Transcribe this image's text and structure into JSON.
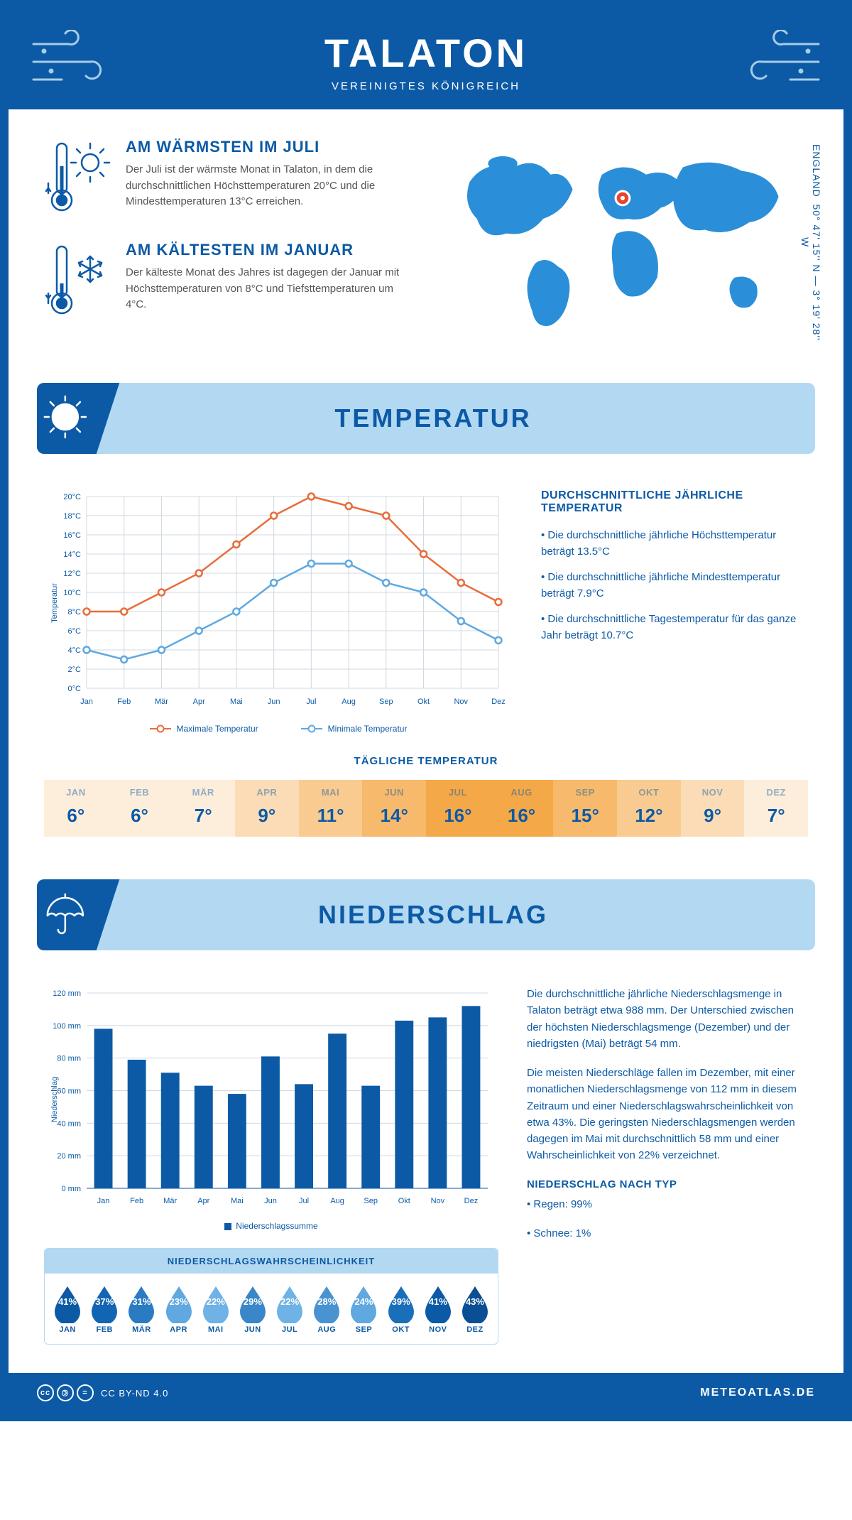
{
  "header": {
    "title": "TALATON",
    "subtitle": "VEREINIGTES KÖNIGREICH"
  },
  "coords": {
    "lat": "50° 47' 15'' N — 3° 19' 28'' W",
    "region": "ENGLAND"
  },
  "intro": {
    "warmest": {
      "title": "AM WÄRMSTEN IM JULI",
      "text": "Der Juli ist der wärmste Monat in Talaton, in dem die durchschnittlichen Höchsttemperaturen 20°C und die Mindesttemperaturen 13°C erreichen."
    },
    "coldest": {
      "title": "AM KÄLTESTEN IM JANUAR",
      "text": "Der kälteste Monat des Jahres ist dagegen der Januar mit Höchsttemperaturen von 8°C und Tiefsttemperaturen um 4°C."
    }
  },
  "temperature": {
    "banner": "TEMPERATUR",
    "chart": {
      "type": "line",
      "months": [
        "Jan",
        "Feb",
        "Mär",
        "Apr",
        "Mai",
        "Jun",
        "Jul",
        "Aug",
        "Sep",
        "Okt",
        "Nov",
        "Dez"
      ],
      "ylabel": "Temperatur",
      "ylim": [
        0,
        20
      ],
      "ytick_step": 2,
      "series": {
        "max": {
          "label": "Maximale Temperatur",
          "color": "#e86c3a",
          "values": [
            8,
            8,
            10,
            12,
            15,
            18,
            20,
            19,
            18,
            14,
            11,
            9
          ]
        },
        "min": {
          "label": "Minimale Temperatur",
          "color": "#5fa8e0",
          "values": [
            4,
            3,
            4,
            6,
            8,
            11,
            13,
            13,
            11,
            10,
            7,
            5
          ]
        }
      },
      "grid_color": "#d0d8e0",
      "background": "#ffffff"
    },
    "info": {
      "title": "DURCHSCHNITTLICHE JÄHRLICHE TEMPERATUR",
      "bullets": [
        "• Die durchschnittliche jährliche Höchsttemperatur beträgt 13.5°C",
        "• Die durchschnittliche jährliche Mindesttemperatur beträgt 7.9°C",
        "• Die durchschnittliche Tagestemperatur für das ganze Jahr beträgt 10.7°C"
      ]
    },
    "daily": {
      "title": "TÄGLICHE TEMPERATUR",
      "months": [
        "JAN",
        "FEB",
        "MÄR",
        "APR",
        "MAI",
        "JUN",
        "JUL",
        "AUG",
        "SEP",
        "OKT",
        "NOV",
        "DEZ"
      ],
      "values": [
        "6°",
        "6°",
        "7°",
        "9°",
        "11°",
        "14°",
        "16°",
        "16°",
        "15°",
        "12°",
        "9°",
        "7°"
      ],
      "colors": [
        "#fdeedb",
        "#fdeedb",
        "#fdeedb",
        "#fbdcb6",
        "#f9cb90",
        "#f7b96b",
        "#f5a847",
        "#f5a847",
        "#f7b96b",
        "#f9cb90",
        "#fbdcb6",
        "#fdeedb"
      ]
    }
  },
  "precip": {
    "banner": "NIEDERSCHLAG",
    "chart": {
      "type": "bar",
      "months": [
        "Jan",
        "Feb",
        "Mär",
        "Apr",
        "Mai",
        "Jun",
        "Jul",
        "Aug",
        "Sep",
        "Okt",
        "Nov",
        "Dez"
      ],
      "ylabel": "Niederschlag",
      "ylim": [
        0,
        120
      ],
      "ytick_step": 20,
      "values": [
        98,
        79,
        71,
        63,
        58,
        81,
        64,
        95,
        63,
        103,
        105,
        112
      ],
      "bar_color": "#0c5aa6",
      "grid_color": "#d0d8e0",
      "legend": "Niederschlagssumme"
    },
    "text": {
      "p1": "Die durchschnittliche jährliche Niederschlagsmenge in Talaton beträgt etwa 988 mm. Der Unterschied zwischen der höchsten Niederschlagsmenge (Dezember) und der niedrigsten (Mai) beträgt 54 mm.",
      "p2": "Die meisten Niederschläge fallen im Dezember, mit einer monatlichen Niederschlagsmenge von 112 mm in diesem Zeitraum und einer Niederschlagswahrscheinlichkeit von etwa 43%. Die geringsten Niederschlagsmengen werden dagegen im Mai mit durchschnittlich 58 mm und einer Wahrscheinlichkeit von 22% verzeichnet.",
      "type_title": "NIEDERSCHLAG NACH TYP",
      "type_rain": "• Regen: 99%",
      "type_snow": "• Schnee: 1%"
    },
    "probability": {
      "title": "NIEDERSCHLAGSWAHRSCHEINLICHKEIT",
      "months": [
        "JAN",
        "FEB",
        "MÄR",
        "APR",
        "MAI",
        "JUN",
        "JUL",
        "AUG",
        "SEP",
        "OKT",
        "NOV",
        "DEZ"
      ],
      "values": [
        41,
        37,
        31,
        23,
        22,
        29,
        22,
        28,
        24,
        39,
        41,
        43
      ],
      "colors": [
        "#0c5aa6",
        "#1265b3",
        "#2b7bc2",
        "#5fa8e0",
        "#6fb2e5",
        "#3a86c9",
        "#6fb2e5",
        "#4a93d2",
        "#5fa8e0",
        "#1a6fba",
        "#0c5aa6",
        "#0a4f94"
      ]
    }
  },
  "footer": {
    "license": "CC BY-ND 4.0",
    "site": "METEOATLAS.DE"
  },
  "colors": {
    "primary": "#0c5aa6",
    "banner_bg": "#b3d9f2"
  }
}
